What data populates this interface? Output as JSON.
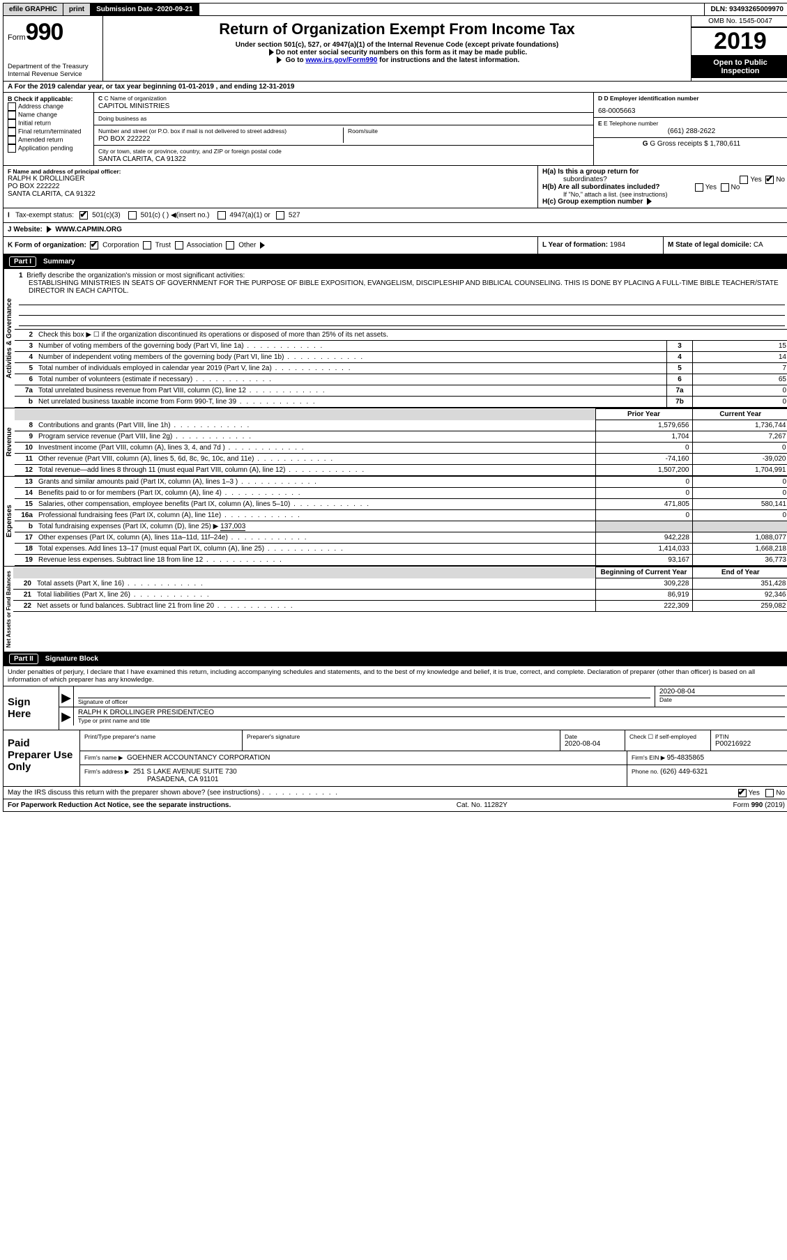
{
  "topbar": {
    "efile_prefix": "efile",
    "efile_graphic": "GRAPHIC",
    "print": "print",
    "submission_label": "Submission Date - ",
    "submission_date": "2020-09-21",
    "dln_label": "DLN: ",
    "dln": "93493265009970"
  },
  "header": {
    "form_word": "Form",
    "form_num": "990",
    "dept": "Department of the Treasury",
    "irs": "Internal Revenue Service",
    "title": "Return of Organization Exempt From Income Tax",
    "sub1": "Under section 501(c), 527, or 4947(a)(1) of the Internal Revenue Code (except private foundations)",
    "sub2": "Do not enter social security numbers on this form as it may be made public.",
    "sub3_pre": "Go to ",
    "sub3_link": "www.irs.gov/Form990",
    "sub3_post": " for instructions and the latest information.",
    "omb": "OMB No. 1545-0047",
    "year": "2019",
    "inspection1": "Open to Public",
    "inspection2": "Inspection"
  },
  "row_a": {
    "text_pre": "A For the 2019 calendar year, or tax year beginning ",
    "begin": "01-01-2019",
    "mid": " , and ending ",
    "end": "12-31-2019"
  },
  "col_b": {
    "header": "B Check if applicable:",
    "opt1": "Address change",
    "opt2": "Name change",
    "opt3": "Initial return",
    "opt4": "Final return/terminated",
    "opt5": "Amended return",
    "opt6": "Application pending"
  },
  "col_c": {
    "name_lbl": "C Name of organization",
    "name": "CAPITOL MINISTRIES",
    "dba_lbl": "Doing business as",
    "dba": "",
    "addr_lbl": "Number and street (or P.O. box if mail is not delivered to street address)",
    "room_lbl": "Room/suite",
    "addr": "PO BOX 222222",
    "city_lbl": "City or town, state or province, country, and ZIP or foreign postal code",
    "city": "SANTA CLARITA, CA  91322"
  },
  "col_de": {
    "d_lbl": "D Employer identification number",
    "d_val": "68-0005663",
    "e_lbl": "E Telephone number",
    "e_val": "(661) 288-2622",
    "g_lbl": "G Gross receipts $ ",
    "g_val": "1,780,611"
  },
  "f": {
    "lbl": "F  Name and address of principal officer:",
    "name": "RALPH K DROLLINGER",
    "addr1": "PO BOX 222222",
    "addr2": "SANTA CLARITA, CA  91322"
  },
  "h": {
    "ha_lbl": "H(a)  Is this a group return for",
    "ha_lbl2": "subordinates?",
    "yes": "Yes",
    "no": "No",
    "hb_lbl": "H(b)  Are all subordinates included?",
    "hb_note": "If \"No,\" attach a list. (see instructions)",
    "hc_lbl": "H(c)  Group exemption number "
  },
  "i": {
    "lbl": "Tax-exempt status:",
    "o1": "501(c)(3)",
    "o2": "501(c) (  ) ",
    "o2b": "(insert no.)",
    "o3": "4947(a)(1) or",
    "o4": "527"
  },
  "j": {
    "lbl": "J Website: ",
    "val": "WWW.CAPMIN.ORG"
  },
  "k": {
    "lbl": "K Form of organization:",
    "o1": "Corporation",
    "o2": "Trust",
    "o3": "Association",
    "o4": "Other"
  },
  "l": {
    "lbl": "L Year of formation: ",
    "val": "1984"
  },
  "m": {
    "lbl": "M State of legal domicile: ",
    "val": "CA"
  },
  "part1": {
    "num": "Part I",
    "title": "Summary"
  },
  "part2": {
    "num": "Part II",
    "title": "Signature Block"
  },
  "sidelabels": {
    "ag": "Activities & Governance",
    "rev": "Revenue",
    "exp": "Expenses",
    "na": "Net Assets or Fund Balances"
  },
  "mission": {
    "n": "1",
    "lbl": "Briefly describe the organization's mission or most significant activities:",
    "text": "ESTABLISHING MINISTRIES IN SEATS OF GOVERNMENT FOR THE PURPOSE OF BIBLE EXPOSITION, EVANGELISM, DISCIPLESHIP AND BIBLICAL COUNSELING. THIS IS DONE BY PLACING A FULL-TIME BIBLE TEACHER/STATE DIRECTOR IN EACH CAPITOL."
  },
  "ag_rows": [
    {
      "n": "2",
      "desc": "Check this box ▶ ☐ if the organization discontinued its operations or disposed of more than 25% of its net assets.",
      "box": "",
      "amt": ""
    },
    {
      "n": "3",
      "desc": "Number of voting members of the governing body (Part VI, line 1a)",
      "box": "3",
      "amt": "15"
    },
    {
      "n": "4",
      "desc": "Number of independent voting members of the governing body (Part VI, line 1b)",
      "box": "4",
      "amt": "14"
    },
    {
      "n": "5",
      "desc": "Total number of individuals employed in calendar year 2019 (Part V, line 2a)",
      "box": "5",
      "amt": "7"
    },
    {
      "n": "6",
      "desc": "Total number of volunteers (estimate if necessary)",
      "box": "6",
      "amt": "65"
    },
    {
      "n": "7a",
      "desc": "Total unrelated business revenue from Part VIII, column (C), line 12",
      "box": "7a",
      "amt": "0"
    },
    {
      "n": "b",
      "desc": "Net unrelated business taxable income from Form 990-T, line 39",
      "box": "7b",
      "amt": "0"
    }
  ],
  "money_hdr": {
    "prior": "Prior Year",
    "curr": "Current Year"
  },
  "rev_rows": [
    {
      "n": "8",
      "desc": "Contributions and grants (Part VIII, line 1h)",
      "prior": "1,579,656",
      "curr": "1,736,744"
    },
    {
      "n": "9",
      "desc": "Program service revenue (Part VIII, line 2g)",
      "prior": "1,704",
      "curr": "7,267"
    },
    {
      "n": "10",
      "desc": "Investment income (Part VIII, column (A), lines 3, 4, and 7d )",
      "prior": "0",
      "curr": "0"
    },
    {
      "n": "11",
      "desc": "Other revenue (Part VIII, column (A), lines 5, 6d, 8c, 9c, 10c, and 11e)",
      "prior": "-74,160",
      "curr": "-39,020"
    },
    {
      "n": "12",
      "desc": "Total revenue—add lines 8 through 11 (must equal Part VIII, column (A), line 12)",
      "prior": "1,507,200",
      "curr": "1,704,991"
    }
  ],
  "exp_rows": [
    {
      "n": "13",
      "desc": "Grants and similar amounts paid (Part IX, column (A), lines 1–3 )",
      "prior": "0",
      "curr": "0"
    },
    {
      "n": "14",
      "desc": "Benefits paid to or for members (Part IX, column (A), line 4)",
      "prior": "0",
      "curr": "0"
    },
    {
      "n": "15",
      "desc": "Salaries, other compensation, employee benefits (Part IX, column (A), lines 5–10)",
      "prior": "471,805",
      "curr": "580,141"
    },
    {
      "n": "16a",
      "desc": "Professional fundraising fees (Part IX, column (A), line 11e)",
      "prior": "0",
      "curr": "0"
    }
  ],
  "exp_16b": {
    "n": "b",
    "desc_pre": "Total fundraising expenses (Part IX, column (D), line 25) ▶",
    "val": "137,003"
  },
  "exp_rows2": [
    {
      "n": "17",
      "desc": "Other expenses (Part IX, column (A), lines 11a–11d, 11f–24e)",
      "prior": "942,228",
      "curr": "1,088,077"
    },
    {
      "n": "18",
      "desc": "Total expenses. Add lines 13–17 (must equal Part IX, column (A), line 25)",
      "prior": "1,414,033",
      "curr": "1,668,218"
    },
    {
      "n": "19",
      "desc": "Revenue less expenses. Subtract line 18 from line 12",
      "prior": "93,167",
      "curr": "36,773"
    }
  ],
  "na_hdr": {
    "begin": "Beginning of Current Year",
    "end": "End of Year"
  },
  "na_rows": [
    {
      "n": "20",
      "desc": "Total assets (Part X, line 16)",
      "prior": "309,228",
      "curr": "351,428"
    },
    {
      "n": "21",
      "desc": "Total liabilities (Part X, line 26)",
      "prior": "86,919",
      "curr": "92,346"
    },
    {
      "n": "22",
      "desc": "Net assets or fund balances. Subtract line 21 from line 20",
      "prior": "222,309",
      "curr": "259,082"
    }
  ],
  "sig": {
    "decl": "Under penalties of perjury, I declare that I have examined this return, including accompanying schedules and statements, and to the best of my knowledge and belief, it is true, correct, and complete. Declaration of preparer (other than officer) is based on all information of which preparer has any knowledge.",
    "here": "Sign Here",
    "sig_officer_cap": "Signature of officer",
    "date_cap": "Date",
    "date_val": "2020-08-04",
    "name_title": "RALPH K DROLLINGER  PRESIDENT/CEO",
    "name_title_cap": "Type or print name and title"
  },
  "paid": {
    "lab": "Paid Preparer Use Only",
    "c1": "Print/Type preparer's name",
    "c2": "Preparer's signature",
    "c3": "Date",
    "c3v": "2020-08-04",
    "c4": "Check ☐ if self-employed",
    "c5": "PTIN",
    "c5v": "P00216922",
    "firm_lbl": "Firm's name    ▶",
    "firm": "GOEHNER ACCOUNTANCY CORPORATION",
    "ein_lbl": "Firm's EIN ▶ ",
    "ein": "95-4835865",
    "addr_lbl": "Firm's address ▶",
    "addr1": "251 S LAKE AVENUE SUITE 730",
    "addr2": "PASADENA, CA  91101",
    "phone_lbl": "Phone no. ",
    "phone": "(626) 449-6321"
  },
  "discuss": {
    "q": "May the IRS discuss this return with the preparer shown above? (see instructions)",
    "yes": "Yes",
    "no": "No"
  },
  "footer": {
    "left": "For Paperwork Reduction Act Notice, see the separate instructions.",
    "mid": "Cat. No. 11282Y",
    "right": "Form 990 (2019)"
  }
}
